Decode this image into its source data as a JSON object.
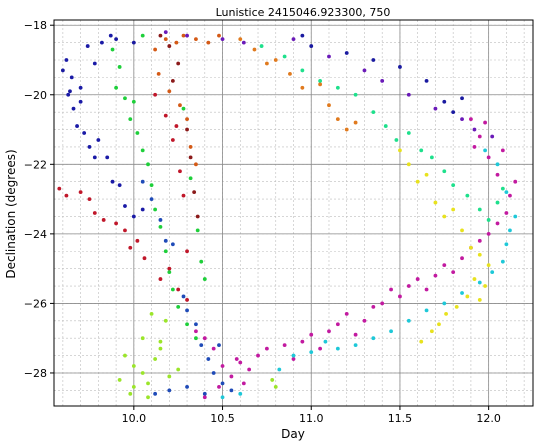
{
  "chart_data": {
    "type": "scatter",
    "title": "Lunistice 2415046.923300, 750",
    "xlabel": "Day",
    "ylabel": "Declination (degrees)",
    "xlim": [
      9.55,
      12.25
    ],
    "ylim": [
      -28.95,
      -17.85
    ],
    "x_ticks": [
      10.0,
      10.5,
      11.0,
      11.5,
      12.0
    ],
    "x_tick_labels": [
      "10.0",
      "10.5",
      "11.0",
      "11.5",
      "12.0"
    ],
    "y_ticks": [
      -18,
      -20,
      -22,
      -24,
      -26,
      -28
    ],
    "y_tick_labels": [
      "−18",
      "−20",
      "−22",
      "−24",
      "−26",
      "−28"
    ],
    "grid": true,
    "minor_grid": true,
    "series": [
      {
        "color": "#1a1aa6",
        "points": [
          [
            9.62,
            -19.0
          ],
          [
            9.65,
            -19.5
          ],
          [
            9.63,
            -20.0
          ],
          [
            9.66,
            -20.4
          ],
          [
            9.7,
            -20.2
          ],
          [
            9.68,
            -20.9
          ],
          [
            9.72,
            -21.1
          ],
          [
            9.75,
            -21.5
          ],
          [
            9.78,
            -21.8
          ],
          [
            9.85,
            -21.8
          ],
          [
            9.88,
            -22.5
          ],
          [
            9.92,
            -22.6
          ],
          [
            9.95,
            -23.2
          ],
          [
            10.0,
            -23.5
          ],
          [
            10.05,
            -23.3
          ],
          [
            9.74,
            -18.6
          ],
          [
            9.78,
            -19.1
          ],
          [
            9.82,
            -18.5
          ],
          [
            9.87,
            -18.3
          ],
          [
            9.7,
            -19.8
          ],
          [
            9.8,
            -21.3
          ]
        ]
      },
      {
        "color": "#c0172a",
        "points": [
          [
            9.58,
            -22.7
          ],
          [
            9.62,
            -22.9
          ],
          [
            9.7,
            -22.8
          ],
          [
            9.75,
            -23.0
          ],
          [
            9.78,
            -23.4
          ],
          [
            9.83,
            -23.6
          ],
          [
            9.9,
            -23.7
          ],
          [
            9.95,
            -23.9
          ],
          [
            9.98,
            -24.4
          ],
          [
            10.02,
            -24.2
          ],
          [
            10.06,
            -24.7
          ],
          [
            10.15,
            -25.3
          ],
          [
            10.2,
            -25.0
          ],
          [
            10.25,
            -25.6
          ],
          [
            10.3,
            -25.9
          ],
          [
            10.12,
            -20.0
          ],
          [
            10.18,
            -20.6
          ],
          [
            10.22,
            -21.3
          ],
          [
            10.26,
            -22.2
          ],
          [
            10.28,
            -22.9
          ],
          [
            10.3,
            -24.5
          ],
          [
            10.24,
            -20.9
          ]
        ]
      },
      {
        "color": "#1f4bb8",
        "points": [
          [
            10.05,
            -22.5
          ],
          [
            10.1,
            -23.0
          ],
          [
            10.15,
            -23.6
          ],
          [
            10.18,
            -24.2
          ],
          [
            10.22,
            -24.3
          ],
          [
            10.28,
            -25.8
          ],
          [
            10.3,
            -26.2
          ],
          [
            10.35,
            -26.6
          ],
          [
            10.38,
            -27.2
          ],
          [
            10.42,
            -27.6
          ],
          [
            10.45,
            -28.0
          ],
          [
            10.5,
            -28.3
          ],
          [
            10.55,
            -28.5
          ],
          [
            10.4,
            -28.6
          ],
          [
            10.3,
            -28.4
          ],
          [
            10.2,
            -28.5
          ],
          [
            10.12,
            -28.6
          ],
          [
            10.48,
            -27.2
          ]
        ]
      },
      {
        "color": "#8b1a1a",
        "points": [
          [
            10.15,
            -18.3
          ],
          [
            10.2,
            -18.6
          ],
          [
            10.25,
            -19.1
          ],
          [
            10.22,
            -19.6
          ],
          [
            10.3,
            -21.0
          ],
          [
            10.32,
            -21.8
          ],
          [
            10.34,
            -22.8
          ],
          [
            10.36,
            -23.5
          ]
        ]
      },
      {
        "color": "#d45a16",
        "points": [
          [
            10.12,
            -18.7
          ],
          [
            10.18,
            -18.4
          ],
          [
            10.24,
            -18.5
          ],
          [
            10.28,
            -18.3
          ],
          [
            10.35,
            -18.4
          ],
          [
            10.42,
            -18.5
          ],
          [
            10.48,
            -18.3
          ],
          [
            10.14,
            -19.4
          ],
          [
            10.2,
            -19.9
          ],
          [
            10.26,
            -20.3
          ],
          [
            10.3,
            -20.7
          ],
          [
            10.32,
            -21.5
          ],
          [
            10.35,
            -22.0
          ]
        ]
      },
      {
        "color": "#1ecf3a",
        "points": [
          [
            9.88,
            -18.7
          ],
          [
            9.92,
            -19.2
          ],
          [
            9.9,
            -19.8
          ],
          [
            9.95,
            -20.1
          ],
          [
            10.0,
            -20.2
          ],
          [
            9.98,
            -20.7
          ],
          [
            10.02,
            -21.1
          ],
          [
            10.05,
            -21.6
          ],
          [
            10.08,
            -22.0
          ],
          [
            10.1,
            -22.6
          ],
          [
            10.12,
            -23.3
          ],
          [
            10.15,
            -23.8
          ],
          [
            10.18,
            -24.5
          ],
          [
            10.2,
            -25.1
          ],
          [
            10.22,
            -25.6
          ],
          [
            10.25,
            -26.1
          ],
          [
            10.3,
            -26.6
          ],
          [
            10.35,
            -27.0
          ],
          [
            10.28,
            -20.4
          ],
          [
            10.32,
            -22.4
          ],
          [
            10.36,
            -23.9
          ],
          [
            10.38,
            -24.8
          ],
          [
            10.4,
            -25.3
          ],
          [
            10.05,
            -18.3
          ]
        ]
      },
      {
        "color": "#9be52a",
        "points": [
          [
            9.95,
            -27.5
          ],
          [
            10.0,
            -27.8
          ],
          [
            10.05,
            -28.0
          ],
          [
            9.92,
            -28.2
          ],
          [
            10.0,
            -28.4
          ],
          [
            10.08,
            -28.3
          ],
          [
            10.12,
            -27.6
          ],
          [
            10.15,
            -27.1
          ],
          [
            10.05,
            -27.0
          ],
          [
            10.18,
            -26.5
          ],
          [
            10.1,
            -26.3
          ],
          [
            9.98,
            -28.6
          ],
          [
            10.08,
            -28.7
          ],
          [
            10.2,
            -28.1
          ],
          [
            10.25,
            -27.9
          ],
          [
            10.78,
            -28.2
          ],
          [
            10.8,
            -28.4
          ],
          [
            10.15,
            -27.3
          ]
        ]
      },
      {
        "color": "#c21aa0",
        "points": [
          [
            10.35,
            -26.8
          ],
          [
            10.4,
            -27.0
          ],
          [
            10.45,
            -27.3
          ],
          [
            10.5,
            -27.8
          ],
          [
            10.55,
            -28.1
          ],
          [
            10.6,
            -27.7
          ],
          [
            10.62,
            -28.3
          ],
          [
            10.65,
            -27.9
          ],
          [
            10.7,
            -27.5
          ],
          [
            10.75,
            -27.3
          ],
          [
            10.85,
            -27.2
          ],
          [
            10.9,
            -27.6
          ],
          [
            10.95,
            -27.1
          ],
          [
            11.0,
            -26.9
          ],
          [
            11.05,
            -27.3
          ],
          [
            11.1,
            -26.8
          ],
          [
            11.15,
            -26.6
          ],
          [
            11.2,
            -26.3
          ],
          [
            11.25,
            -26.9
          ],
          [
            11.3,
            -26.5
          ],
          [
            11.35,
            -26.1
          ],
          [
            11.4,
            -26.0
          ],
          [
            11.45,
            -25.6
          ],
          [
            11.5,
            -25.8
          ],
          [
            11.55,
            -25.5
          ],
          [
            11.6,
            -25.3
          ],
          [
            11.65,
            -25.6
          ],
          [
            11.7,
            -25.2
          ],
          [
            11.75,
            -24.9
          ],
          [
            11.8,
            -25.1
          ],
          [
            11.85,
            -24.7
          ],
          [
            11.9,
            -24.4
          ],
          [
            11.95,
            -24.2
          ],
          [
            12.0,
            -24.0
          ],
          [
            12.05,
            -23.7
          ],
          [
            12.1,
            -23.4
          ],
          [
            12.12,
            -22.9
          ],
          [
            12.05,
            -22.3
          ],
          [
            12.0,
            -21.8
          ],
          [
            11.95,
            -21.2
          ],
          [
            11.9,
            -20.7
          ],
          [
            11.92,
            -21.5
          ],
          [
            12.08,
            -21.6
          ],
          [
            12.15,
            -22.5
          ],
          [
            11.98,
            -20.8
          ],
          [
            10.58,
            -27.6
          ],
          [
            10.48,
            -28.4
          ],
          [
            10.4,
            -28.7
          ]
        ]
      },
      {
        "color": "#1a1aa0",
        "points": [
          [
            9.6,
            -19.3
          ],
          [
            9.64,
            -19.9
          ],
          [
            9.9,
            -18.4
          ],
          [
            10.0,
            -18.5
          ],
          [
            10.95,
            -18.3
          ],
          [
            11.0,
            -18.6
          ],
          [
            11.2,
            -18.8
          ],
          [
            11.35,
            -19.0
          ],
          [
            11.5,
            -19.2
          ],
          [
            11.65,
            -19.6
          ],
          [
            11.75,
            -20.2
          ],
          [
            11.8,
            -20.5
          ],
          [
            11.85,
            -20.1
          ]
        ]
      },
      {
        "color": "#e07a1e",
        "points": [
          [
            10.6,
            -18.4
          ],
          [
            10.68,
            -18.7
          ],
          [
            10.75,
            -19.1
          ],
          [
            10.8,
            -19.0
          ],
          [
            10.88,
            -19.4
          ],
          [
            10.95,
            -19.8
          ],
          [
            11.05,
            -19.7
          ],
          [
            11.1,
            -20.3
          ],
          [
            11.15,
            -20.7
          ],
          [
            11.2,
            -21.0
          ],
          [
            11.25,
            -20.8
          ]
        ]
      },
      {
        "color": "#e8e21e",
        "points": [
          [
            11.5,
            -21.6
          ],
          [
            11.55,
            -22.0
          ],
          [
            11.6,
            -22.5
          ],
          [
            11.65,
            -22.3
          ],
          [
            11.7,
            -23.1
          ],
          [
            11.75,
            -23.5
          ],
          [
            11.8,
            -23.3
          ],
          [
            11.85,
            -23.9
          ],
          [
            11.9,
            -24.4
          ],
          [
            11.95,
            -24.6
          ],
          [
            12.0,
            -24.9
          ],
          [
            11.92,
            -25.3
          ],
          [
            11.88,
            -25.8
          ],
          [
            11.82,
            -26.1
          ],
          [
            11.76,
            -26.3
          ],
          [
            11.72,
            -26.6
          ],
          [
            11.68,
            -26.8
          ],
          [
            11.62,
            -27.1
          ],
          [
            11.95,
            -25.9
          ],
          [
            11.98,
            -25.5
          ]
        ]
      },
      {
        "color": "#1ee08c",
        "points": [
          [
            10.72,
            -18.6
          ],
          [
            10.85,
            -18.9
          ],
          [
            10.95,
            -19.3
          ],
          [
            11.05,
            -19.6
          ],
          [
            11.15,
            -19.8
          ],
          [
            11.25,
            -20.0
          ],
          [
            11.35,
            -20.5
          ],
          [
            11.42,
            -20.9
          ],
          [
            11.48,
            -21.3
          ],
          [
            11.55,
            -21.1
          ],
          [
            11.62,
            -21.6
          ],
          [
            11.68,
            -21.8
          ],
          [
            11.75,
            -22.2
          ],
          [
            11.8,
            -22.6
          ],
          [
            11.88,
            -22.9
          ],
          [
            11.95,
            -23.3
          ],
          [
            12.0,
            -23.6
          ],
          [
            12.05,
            -23.1
          ],
          [
            12.08,
            -22.7
          ]
        ]
      },
      {
        "color": "#1ec8d8",
        "points": [
          [
            10.82,
            -27.9
          ],
          [
            10.9,
            -27.5
          ],
          [
            11.0,
            -27.4
          ],
          [
            11.08,
            -27.1
          ],
          [
            11.15,
            -27.3
          ],
          [
            11.25,
            -27.2
          ],
          [
            11.35,
            -27.0
          ],
          [
            11.45,
            -26.8
          ],
          [
            11.55,
            -26.5
          ],
          [
            11.65,
            -26.2
          ],
          [
            11.75,
            -26.0
          ],
          [
            11.85,
            -25.7
          ],
          [
            11.95,
            -25.4
          ],
          [
            12.02,
            -25.1
          ],
          [
            12.08,
            -24.8
          ],
          [
            12.1,
            -24.3
          ],
          [
            12.12,
            -23.9
          ],
          [
            12.15,
            -23.5
          ],
          [
            12.1,
            -22.8
          ],
          [
            12.05,
            -22.0
          ],
          [
            11.98,
            -21.6
          ],
          [
            10.6,
            -28.6
          ],
          [
            10.5,
            -28.7
          ]
        ]
      },
      {
        "color": "#6a1ab8",
        "points": [
          [
            10.18,
            -18.2
          ],
          [
            10.3,
            -18.3
          ],
          [
            10.5,
            -18.4
          ],
          [
            10.62,
            -18.5
          ],
          [
            10.9,
            -18.4
          ],
          [
            11.1,
            -18.9
          ],
          [
            11.3,
            -19.3
          ],
          [
            11.4,
            -19.6
          ],
          [
            11.55,
            -20.0
          ],
          [
            11.7,
            -20.4
          ],
          [
            11.85,
            -20.7
          ],
          [
            11.92,
            -21.0
          ],
          [
            12.02,
            -21.2
          ]
        ]
      }
    ]
  }
}
